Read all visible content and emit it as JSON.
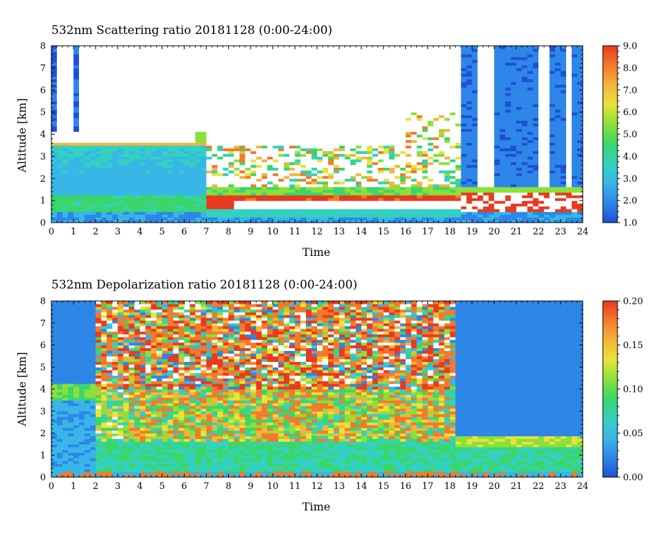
{
  "colors": {
    "colormap": [
      "#1f4fd6",
      "#2d86e8",
      "#38b6e8",
      "#33d1c0",
      "#3bd66a",
      "#8be03a",
      "#e8e33a",
      "#f5b43a",
      "#f37a2a",
      "#e83a1f"
    ],
    "sky_clear": "#ffffff"
  },
  "chart_data": [
    {
      "type": "heatmap",
      "title": "532nm Scattering ratio  20181128 (0:00-24:00)",
      "xlabel": "Time",
      "ylabel": "Altitude [km]",
      "xlim": [
        0,
        24
      ],
      "ylim": [
        0,
        8
      ],
      "x_ticks": [
        "0",
        "1",
        "2",
        "3",
        "4",
        "5",
        "6",
        "7",
        "8",
        "9",
        "10",
        "11",
        "12",
        "13",
        "14",
        "15",
        "16",
        "17",
        "18",
        "19",
        "20",
        "21",
        "22",
        "23",
        "24"
      ],
      "y_ticks": [
        "0",
        "1",
        "2",
        "3",
        "4",
        "5",
        "6",
        "7",
        "8"
      ],
      "colorbar": {
        "min": 1.0,
        "max": 9.0,
        "ticks": [
          "1.0",
          "2.0",
          "3.0",
          "4.0",
          "5.0",
          "6.0",
          "7.0",
          "8.0",
          "9.0"
        ]
      },
      "features": [
        {
          "time": [
            0.0,
            7.0
          ],
          "altitude_km": [
            3.5,
            4.1
          ],
          "description": "cloud top layer (high values, saturated)"
        },
        {
          "time": [
            7.8,
            18.5
          ],
          "altitude_km": [
            0.6,
            1.3
          ],
          "description": "low boundary-layer cloud (saturated)"
        },
        {
          "time": [
            18.5,
            24.0
          ],
          "altitude_km": [
            0.0,
            8.0
          ],
          "description": "low-value background with vertical streaks"
        }
      ]
    },
    {
      "type": "heatmap",
      "title": "532nm Depolarization ratio  20181128 (0:00-24:00)",
      "xlabel": "Time",
      "ylabel": "Altitude [km]",
      "xlim": [
        0,
        24
      ],
      "ylim": [
        0,
        8
      ],
      "x_ticks": [
        "0",
        "1",
        "2",
        "3",
        "4",
        "5",
        "6",
        "7",
        "8",
        "9",
        "10",
        "11",
        "12",
        "13",
        "14",
        "15",
        "16",
        "17",
        "18",
        "19",
        "20",
        "21",
        "22",
        "23",
        "24"
      ],
      "y_ticks": [
        "0",
        "1",
        "2",
        "3",
        "4",
        "5",
        "6",
        "7",
        "8"
      ],
      "colorbar": {
        "min": 0.0,
        "max": 0.2,
        "ticks": [
          "0.00",
          "0.05",
          "0.10",
          "0.15",
          "0.20"
        ]
      },
      "features": [
        {
          "time": [
            2.0,
            18.3
          ],
          "altitude_km": [
            4.0,
            8.0
          ],
          "description": "noisy high-depolarization region"
        },
        {
          "time": [
            3.5,
            18.0
          ],
          "altitude_km": [
            1.5,
            3.5
          ],
          "description": "high depolarization aerosol/ice plumes"
        },
        {
          "time": [
            18.3,
            24.0
          ],
          "altitude_km": [
            1.4,
            1.9
          ],
          "description": "moderate depolarization layer"
        }
      ]
    }
  ]
}
